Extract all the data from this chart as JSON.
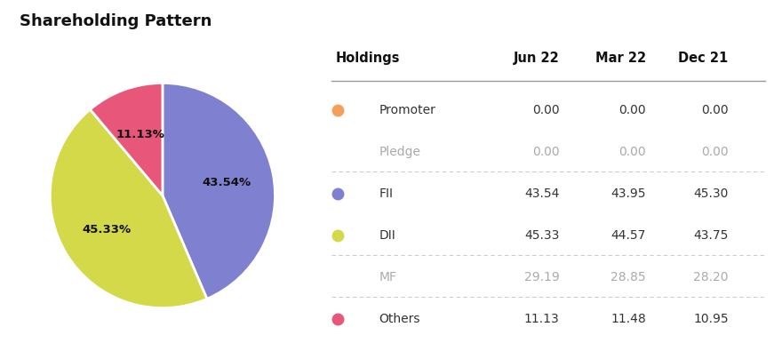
{
  "title": "Shareholding Pattern",
  "pie_values": [
    43.54,
    45.33,
    11.13
  ],
  "pie_labels": [
    "43.54%",
    "45.33%",
    "11.13%"
  ],
  "pie_colors": [
    "#8080D0",
    "#D4D94A",
    "#E8567A"
  ],
  "table_headers": [
    "Holdings",
    "Jun 22",
    "Mar 22",
    "Dec 21"
  ],
  "table_rows": [
    {
      "label": "Promoter",
      "color": "#F5A05A",
      "bold": false,
      "values": [
        "0.00",
        "0.00",
        "0.00"
      ],
      "show_dot": true,
      "dim": false
    },
    {
      "label": "Pledge",
      "color": null,
      "bold": false,
      "values": [
        "0.00",
        "0.00",
        "0.00"
      ],
      "show_dot": false,
      "dim": true
    },
    {
      "label": "FII",
      "color": "#8080D0",
      "bold": false,
      "values": [
        "43.54",
        "43.95",
        "45.30"
      ],
      "show_dot": true,
      "dim": false
    },
    {
      "label": "DII",
      "color": "#D4D94A",
      "bold": false,
      "values": [
        "45.33",
        "44.57",
        "43.75"
      ],
      "show_dot": true,
      "dim": false
    },
    {
      "label": "MF",
      "color": null,
      "bold": false,
      "values": [
        "29.19",
        "28.85",
        "28.20"
      ],
      "show_dot": false,
      "dim": true
    },
    {
      "label": "Others",
      "color": "#E8567A",
      "bold": false,
      "values": [
        "11.13",
        "11.48",
        "10.95"
      ],
      "show_dot": true,
      "dim": false
    }
  ],
  "background_color": "#FFFFFF",
  "title_fontsize": 13,
  "header_fontsize": 10.5,
  "cell_fontsize": 10,
  "label_fontsize": 10,
  "pie_label_fontsize": 9.5
}
